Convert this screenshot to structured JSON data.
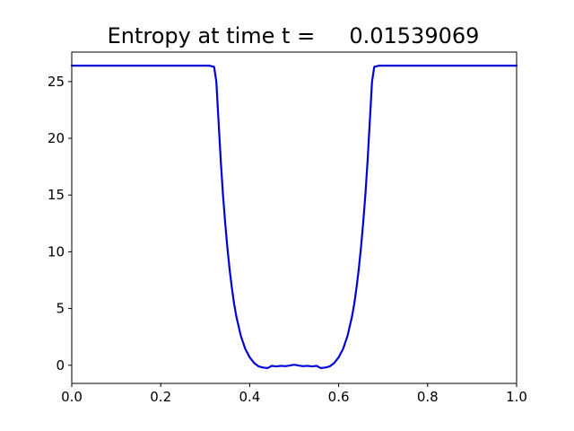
{
  "chart_data": {
    "type": "line",
    "title": "Entropy at time t =     0.01539069",
    "xlabel": "",
    "ylabel": "",
    "xlim": [
      0.0,
      1.0
    ],
    "ylim": [
      -1.6,
      27.6
    ],
    "grid": false,
    "x_ticks": [
      0.0,
      0.2,
      0.4,
      0.6,
      0.8,
      1.0
    ],
    "x_tick_labels": [
      "0.0",
      "0.2",
      "0.4",
      "0.6",
      "0.8",
      "1.0"
    ],
    "y_ticks": [
      0,
      5,
      10,
      15,
      20,
      25
    ],
    "y_tick_labels": [
      "0",
      "5",
      "10",
      "15",
      "20",
      "25"
    ],
    "colors": {
      "line": "#0000dd"
    },
    "series": [
      {
        "x": [
          0.0,
          0.05,
          0.1,
          0.15,
          0.2,
          0.25,
          0.3,
          0.31,
          0.32,
          0.325,
          0.33,
          0.335,
          0.34,
          0.345,
          0.35,
          0.355,
          0.36,
          0.365,
          0.37,
          0.38,
          0.39,
          0.4,
          0.41,
          0.42,
          0.43,
          0.44,
          0.45,
          0.46,
          0.47,
          0.48,
          0.49,
          0.5,
          0.51,
          0.52,
          0.53,
          0.54,
          0.55,
          0.56,
          0.57,
          0.58,
          0.59,
          0.6,
          0.61,
          0.62,
          0.63,
          0.635,
          0.64,
          0.645,
          0.65,
          0.655,
          0.66,
          0.665,
          0.67,
          0.675,
          0.68,
          0.69,
          0.7,
          0.75,
          0.8,
          0.85,
          0.9,
          0.95,
          1.0
        ],
        "y": [
          26.4,
          26.4,
          26.4,
          26.4,
          26.4,
          26.4,
          26.4,
          26.4,
          26.3,
          25.0,
          21.5,
          18.0,
          15.0,
          12.5,
          10.3,
          8.4,
          6.8,
          5.4,
          4.3,
          2.6,
          1.45,
          0.7,
          0.2,
          -0.1,
          -0.2,
          -0.25,
          -0.05,
          -0.1,
          -0.05,
          -0.08,
          -0.02,
          0.05,
          -0.02,
          -0.08,
          -0.05,
          -0.1,
          -0.05,
          -0.25,
          -0.2,
          -0.1,
          0.2,
          0.7,
          1.45,
          2.6,
          4.3,
          5.4,
          6.8,
          8.4,
          10.3,
          12.5,
          15.0,
          18.0,
          21.5,
          25.0,
          26.3,
          26.4,
          26.4,
          26.4,
          26.4,
          26.4,
          26.4,
          26.4,
          26.4
        ]
      }
    ]
  }
}
